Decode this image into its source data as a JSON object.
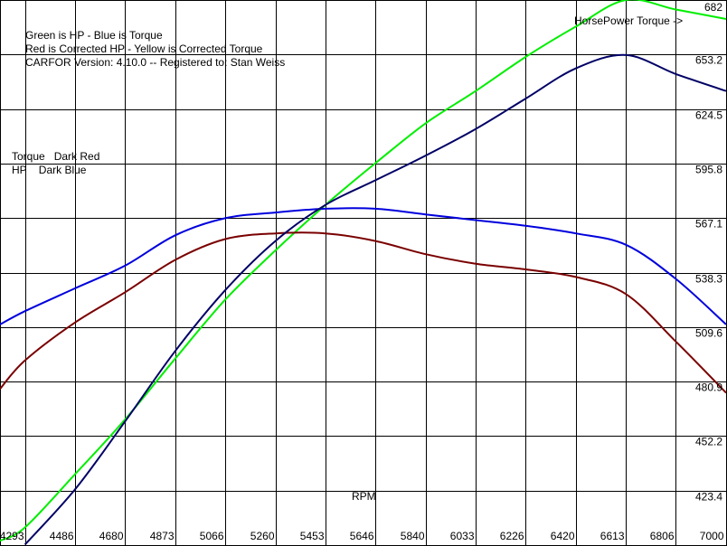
{
  "chart_data": {
    "type": "line",
    "notes": [
      "Green is HP - Blue is Torque",
      "Red is Corrected HP - Yellow is Corrected Torque",
      "CARFOR Version: 4.10.0 -- Registered to:   Stan Weiss"
    ],
    "right_annotation": "HorsePower Torque ->",
    "left_legend": [
      "Torque   Dark Red",
      "HP    Dark Blue"
    ],
    "xlabel": "RPM",
    "x_ticks": [
      "4293",
      "4486",
      "4680",
      "4873",
      "5066",
      "5260",
      "5453",
      "5646",
      "5840",
      "6033",
      "6226",
      "6420",
      "6613",
      "6806",
      "7000"
    ],
    "y_ticks": [
      "682",
      "653.2",
      "624.5",
      "595.8",
      "567.1",
      "538.3",
      "509.6",
      "480.9",
      "452.2",
      "423.4"
    ],
    "xlim": [
      4196.5,
      7000
    ],
    "ylim": [
      394.7,
      682
    ],
    "grid": true,
    "series": [
      {
        "name": "Green",
        "color": "#00ee00",
        "x": [
          4196.5,
          4293,
          4486,
          4680,
          4873,
          5066,
          5260,
          5453,
          5646,
          5840,
          6033,
          6226,
          6420,
          6613,
          6806,
          7000
        ],
        "y": [
          397,
          404,
          432,
          461,
          493,
          524,
          550,
          574,
          596,
          617,
          634,
          652,
          668,
          682,
          677,
          672
        ]
      },
      {
        "name": "Blue",
        "color": "#0000dd",
        "x": [
          4196.5,
          4293,
          4486,
          4680,
          4873,
          5066,
          5260,
          5453,
          5646,
          5840,
          6033,
          6226,
          6420,
          6613,
          6806,
          7000
        ],
        "y": [
          511,
          518,
          530,
          542,
          558,
          567,
          570,
          572,
          572,
          569,
          566,
          563,
          559,
          553,
          535,
          511
        ]
      },
      {
        "name": "Dark Red",
        "color": "#7a0000",
        "x": [
          4196.5,
          4293,
          4486,
          4680,
          4873,
          5066,
          5260,
          5453,
          5646,
          5840,
          6033,
          6226,
          6420,
          6613,
          6806,
          7000
        ],
        "y": [
          477,
          492,
          512,
          528,
          545,
          556,
          559,
          559,
          555,
          548,
          543,
          540,
          536,
          527,
          502,
          475
        ]
      },
      {
        "name": "Dark Blue",
        "color": "#000066",
        "x": [
          4293,
          4486,
          4680,
          4873,
          5066,
          5260,
          5453,
          5646,
          5840,
          6033,
          6226,
          6420,
          6613,
          6806,
          7000
        ],
        "y": [
          395,
          424,
          460,
          497,
          529,
          555,
          574,
          587,
          600,
          614,
          630,
          646,
          653,
          643,
          634
        ]
      }
    ]
  }
}
